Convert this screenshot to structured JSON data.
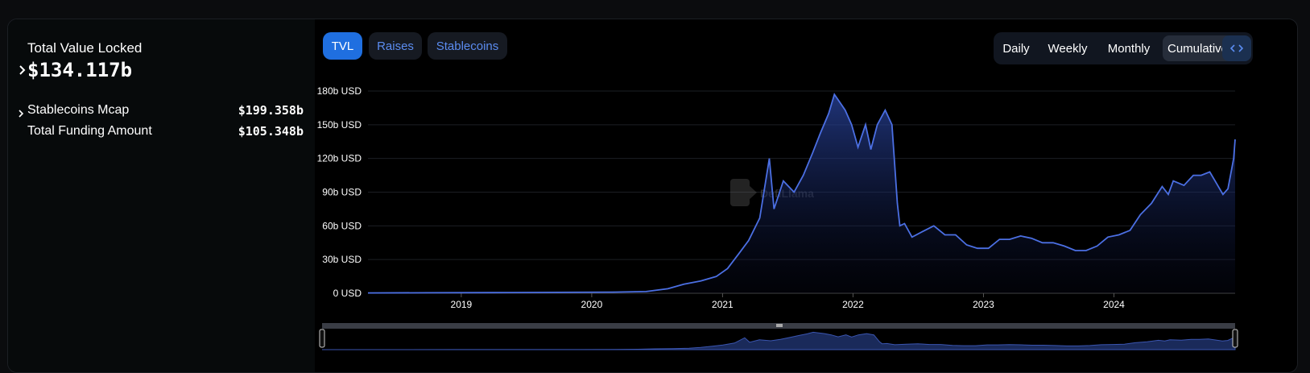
{
  "summary": {
    "tvl_label": "Total Value Locked",
    "tvl_value": "$134.117b",
    "stablecoins_label": "Stablecoins Mcap",
    "stablecoins_value": "$199.358b",
    "funding_label": "Total Funding Amount",
    "funding_value": "$105.348b"
  },
  "tabs": [
    "TVL",
    "Raises",
    "Stablecoins"
  ],
  "periods": [
    "Daily",
    "Weekly",
    "Monthly",
    "Cumulative"
  ],
  "selected_period": "Cumulative",
  "icons": {
    "expand": "chevron-right-icon",
    "embed": "code-icon",
    "watermark": "defillama-logo"
  },
  "watermark_text": "DefiLlama",
  "colors": {
    "accent": "#1f6fe0",
    "line": "#4b6fe3",
    "tab_text": "#5b8cf0"
  },
  "chart_data": {
    "type": "area",
    "title": "",
    "xlabel": "",
    "ylabel": "",
    "y_tick_labels": [
      "0 USD",
      "30b USD",
      "60b USD",
      "90b USD",
      "120b USD",
      "150b USD",
      "180b USD"
    ],
    "x_tick_labels": [
      "2019",
      "2020",
      "2021",
      "2022",
      "2023",
      "2024"
    ],
    "ylim": [
      0,
      180
    ],
    "xlim": [
      "2018-04-15",
      "2024-12-05"
    ],
    "grid": true,
    "series": [
      {
        "x": [
          "2018-04-15",
          "2018-10-01",
          "2019-04-01",
          "2019-10-01",
          "2020-03-01",
          "2020-06-01",
          "2020-08-01",
          "2020-09-15",
          "2020-11-01",
          "2020-12-15",
          "2021-01-15",
          "2021-02-15",
          "2021-03-15",
          "2021-04-15",
          "2021-05-12",
          "2021-05-25",
          "2021-06-20",
          "2021-07-20",
          "2021-08-15",
          "2021-09-10",
          "2021-10-01",
          "2021-10-25",
          "2021-11-10",
          "2021-11-25",
          "2021-12-10",
          "2021-12-28",
          "2022-01-15",
          "2022-02-05",
          "2022-02-20",
          "2022-03-10",
          "2022-04-01",
          "2022-04-20",
          "2022-05-05",
          "2022-05-12",
          "2022-05-25",
          "2022-06-15",
          "2022-07-15",
          "2022-08-15",
          "2022-09-15",
          "2022-10-15",
          "2022-11-15",
          "2022-12-15",
          "2023-01-15",
          "2023-02-15",
          "2023-03-15",
          "2023-04-15",
          "2023-05-15",
          "2023-06-15",
          "2023-07-15",
          "2023-08-15",
          "2023-09-15",
          "2023-10-15",
          "2023-11-15",
          "2023-12-15",
          "2024-01-15",
          "2024-02-15",
          "2024-03-15",
          "2024-04-15",
          "2024-05-15",
          "2024-06-01",
          "2024-06-15",
          "2024-07-15",
          "2024-08-10",
          "2024-09-01",
          "2024-09-25",
          "2024-10-10",
          "2024-11-01",
          "2024-11-15",
          "2024-12-01",
          "2024-12-05"
        ],
        "y": [
          0.3,
          0.4,
          0.6,
          0.8,
          1.0,
          1.5,
          4,
          8,
          11,
          15,
          22,
          35,
          47,
          67,
          120,
          75,
          100,
          90,
          105,
          125,
          142,
          160,
          177,
          170,
          163,
          150,
          130,
          150,
          128,
          150,
          163,
          150,
          80,
          60,
          62,
          50,
          55,
          60,
          52,
          52,
          43,
          40,
          40,
          48,
          48,
          51,
          49,
          45,
          45,
          42,
          38,
          38,
          42,
          50,
          52,
          56,
          70,
          80,
          95,
          88,
          100,
          96,
          105,
          105,
          108,
          100,
          88,
          93,
          120,
          137
        ]
      }
    ]
  }
}
